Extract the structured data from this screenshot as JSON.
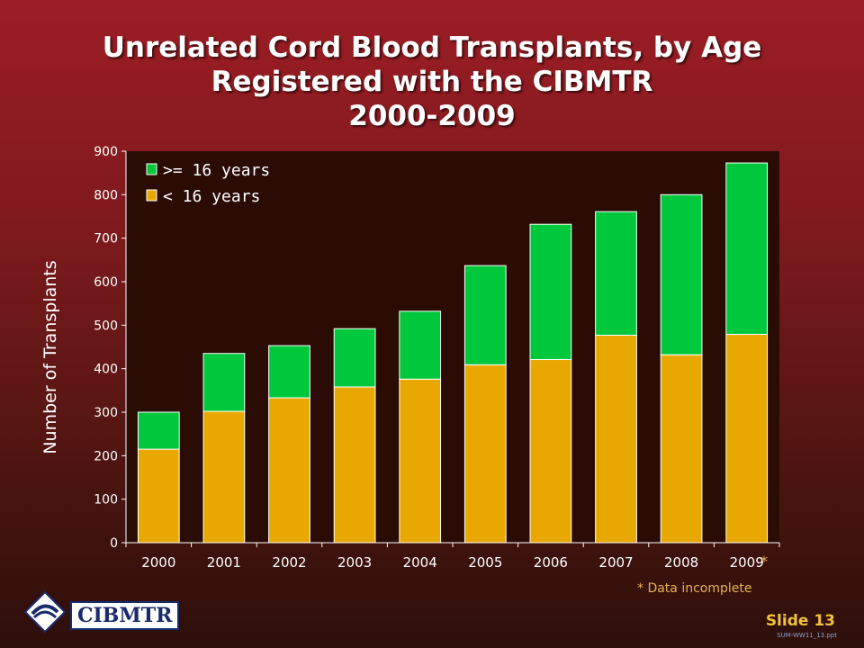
{
  "title_lines": [
    "Unrelated Cord Blood Transplants, by Age",
    "Registered with the CIBMTR",
    "2000-2009"
  ],
  "chart_data": {
    "type": "bar",
    "stacked": true,
    "title": "Unrelated Cord Blood Transplants, by Age Registered with the CIBMTR 2000-2009",
    "ylabel": "Number of Transplants",
    "xlabel": "",
    "ylim": [
      0,
      900
    ],
    "yticks": [
      0,
      100,
      200,
      300,
      400,
      500,
      600,
      700,
      800,
      900
    ],
    "grid": false,
    "legend": "top-left",
    "categories": [
      "2000",
      "2001",
      "2002",
      "2003",
      "2004",
      "2005",
      "2006",
      "2007",
      "2008",
      "2009"
    ],
    "series": [
      {
        "name": "< 16 years",
        "color": "#e8a800",
        "values": [
          215,
          302,
          333,
          358,
          376,
          409,
          421,
          477,
          432,
          479
        ]
      },
      {
        "name": ">= 16 years",
        "color": "#00c83c",
        "values": [
          85,
          133,
          120,
          134,
          156,
          228,
          311,
          284,
          368,
          394
        ]
      }
    ],
    "annotations": [
      "*",
      "* Data incomplete"
    ]
  },
  "footer": {
    "note": "* Data incomplete",
    "star": "*",
    "logo_text": "CIBMTR",
    "slide_label": "Slide 13",
    "file_ref": "SUM-WW11_13.ppt"
  }
}
